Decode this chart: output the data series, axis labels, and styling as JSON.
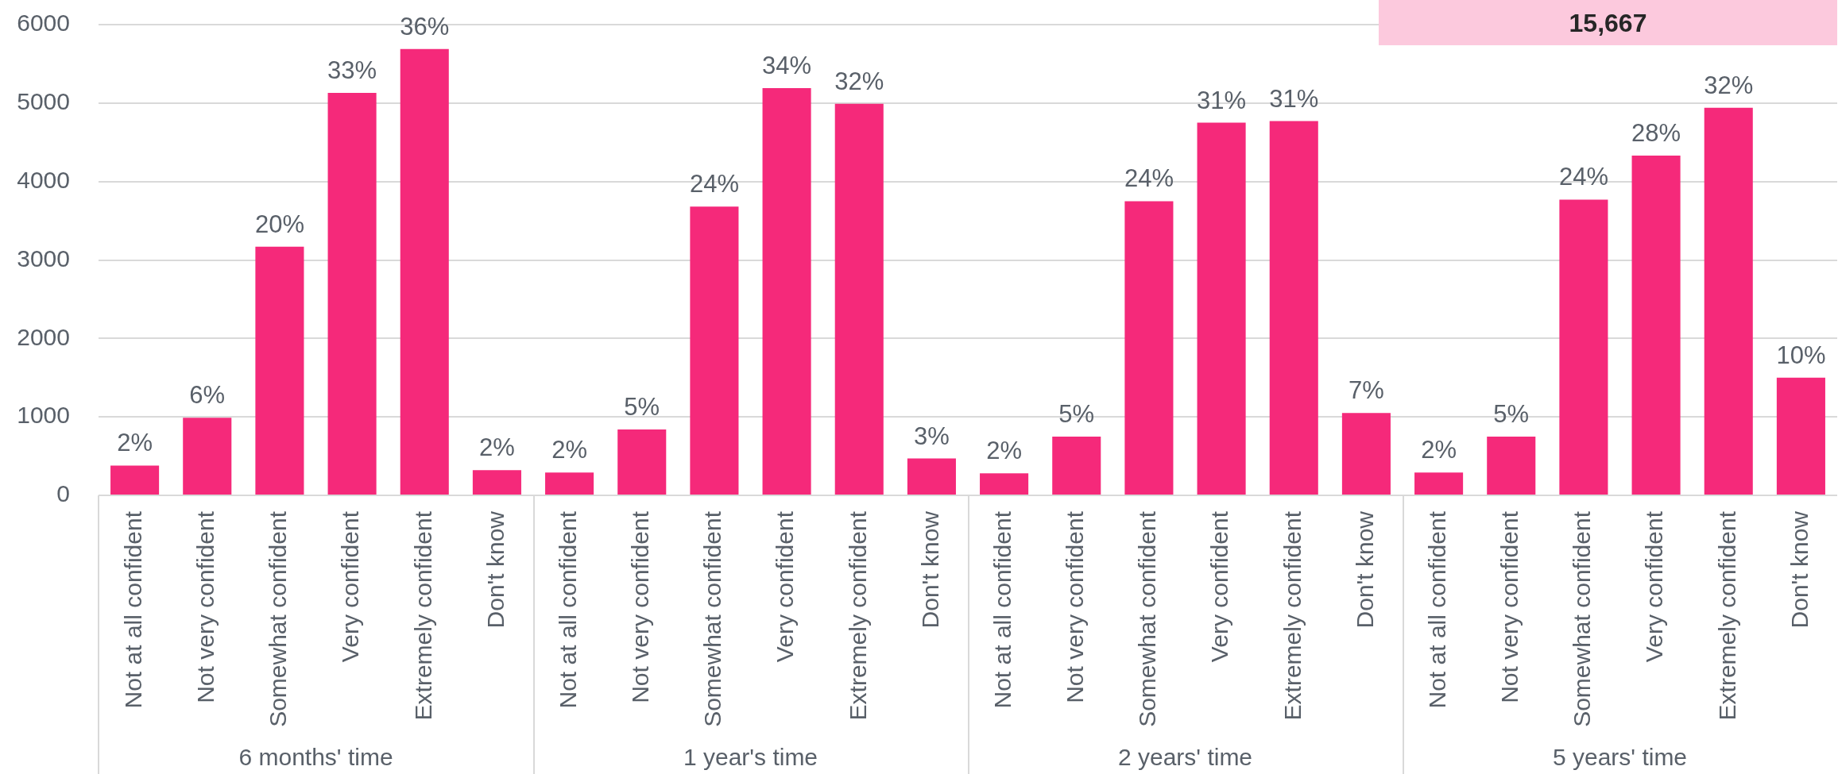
{
  "chart_data": [
    {
      "type": "bar",
      "categories": [
        "Not at all confident",
        "Not very confident",
        "Somewhat confident",
        "Very confident",
        "Extremely confident",
        "Don't know"
      ],
      "values": [
        380,
        990,
        3170,
        5130,
        5690,
        320
      ],
      "color": "#f5297a",
      "xlabel": "6 months' time",
      "ylim": [
        0,
        6000
      ],
      "yticks": [
        0,
        1000,
        2000,
        3000,
        4000,
        5000,
        6000
      ],
      "grid": "y",
      "annotations": [
        {
          "text": "2%",
          "x": "Not at all confident",
          "y": 380
        },
        {
          "text": "6%",
          "x": "Not very confident",
          "y": 990
        },
        {
          "text": "20%",
          "x": "Somewhat confident",
          "y": 3170
        },
        {
          "text": "33%",
          "x": "Very confident",
          "y": 5130
        },
        {
          "text": "36%",
          "x": "Extremely confident",
          "y": 5690
        },
        {
          "text": "2%",
          "x": "Don't know",
          "y": 320
        }
      ]
    },
    {
      "type": "bar",
      "categories": [
        "Not at all confident",
        "Not very confident",
        "Somewhat confident",
        "Very confident",
        "Extremely confident",
        "Don't know"
      ],
      "values": [
        290,
        840,
        3680,
        5190,
        4990,
        470
      ],
      "color": "#f5297a",
      "xlabel": "1 year's time",
      "ylim": [
        0,
        6000
      ],
      "yticks": [
        0,
        1000,
        2000,
        3000,
        4000,
        5000,
        6000
      ],
      "grid": "y",
      "tick_labels": "x",
      "annotations": [
        {
          "text": "2%",
          "x": "Not at all confident",
          "y": 290
        },
        {
          "text": "5%",
          "x": "Not very confident",
          "y": 840
        },
        {
          "text": "24%",
          "x": "Somewhat confident",
          "y": 3680
        },
        {
          "text": "34%",
          "x": "Very confident",
          "y": 5190
        },
        {
          "text": "32%",
          "x": "Extremely confident",
          "y": 4990
        },
        {
          "text": "3%",
          "x": "Don't know",
          "y": 470
        }
      ]
    },
    {
      "type": "bar",
      "categories": [
        "Not at all confident",
        "Not very confident",
        "Somewhat confident",
        "Very confident",
        "Extremely confident",
        "Don't know"
      ],
      "values": [
        280,
        750,
        3750,
        4750,
        4770,
        1050
      ],
      "color": "#f5297a",
      "xlabel": "2 years' time",
      "ylim": [
        0,
        6000
      ],
      "yticks": [
        0,
        1000,
        2000,
        3000,
        4000,
        5000,
        6000
      ],
      "grid": "y",
      "tick_labels": "x",
      "annotations": [
        {
          "text": "2%",
          "x": "Not at all confident",
          "y": 280
        },
        {
          "text": "5%",
          "x": "Not very confident",
          "y": 750
        },
        {
          "text": "24%",
          "x": "Somewhat confident",
          "y": 3750
        },
        {
          "text": "31%",
          "x": "Very confident",
          "y": 4750
        },
        {
          "text": "31%",
          "x": "Extremely confident",
          "y": 4770
        },
        {
          "text": "7%",
          "x": "Don't know",
          "y": 1050
        }
      ]
    },
    {
      "type": "bar",
      "categories": [
        "Not at all confident",
        "Not very confident",
        "Somewhat confident",
        "Very confident",
        "Extremely confident",
        "Don't know"
      ],
      "values": [
        290,
        750,
        3770,
        4330,
        4940,
        1500
      ],
      "color": "#f5297a",
      "xlabel": "5 years' time",
      "ylim": [
        0,
        6000
      ],
      "yticks": [
        0,
        1000,
        2000,
        3000,
        4000,
        5000,
        6000
      ],
      "grid": "y",
      "tick_labels": "x",
      "annotations": [
        "15,667",
        {
          "text": "2%",
          "x": "Not at all confident",
          "y": 290
        },
        {
          "text": "5%",
          "x": "Not very confident",
          "y": 750
        },
        {
          "text": "24%",
          "x": "Somewhat confident",
          "y": 3770
        },
        {
          "text": "28%",
          "x": "Very confident",
          "y": 4330
        },
        {
          "text": "32%",
          "x": "Extremely confident",
          "y": 4940
        },
        {
          "text": "10%",
          "x": "Don't know",
          "y": 1500
        }
      ]
    }
  ]
}
